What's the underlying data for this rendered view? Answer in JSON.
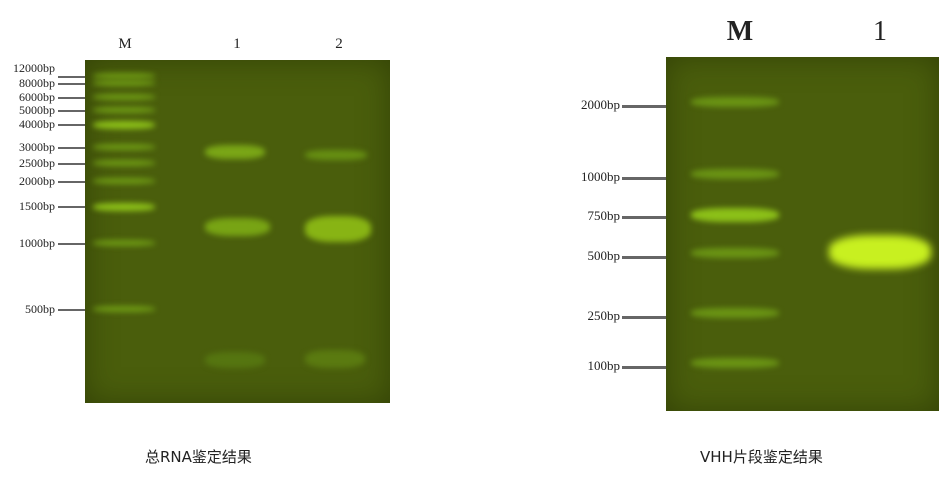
{
  "figure_left": {
    "lanes": [
      "M",
      "1",
      "2"
    ],
    "markers": [
      "12000bp",
      "8000bp",
      "6000bp",
      "5000bp",
      "4000bp",
      "3000bp",
      "2500bp",
      "2000bp",
      "1500bp",
      "1000bp",
      "500bp"
    ],
    "caption": "总RNA鉴定结果"
  },
  "figure_right": {
    "lanes": [
      "M",
      "1"
    ],
    "markers": [
      "2000bp",
      "1000bp",
      "750bp",
      "500bp",
      "250bp",
      "100bp"
    ],
    "caption": "VHH片段鉴定结果"
  },
  "colors": {
    "gel": "#4a5e0c",
    "band": "#9ccc1a",
    "bright_band": "#c8f020"
  }
}
